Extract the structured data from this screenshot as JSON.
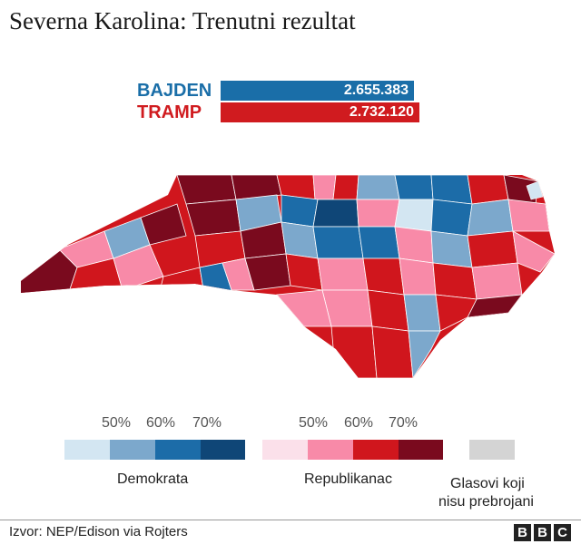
{
  "title": "Severna Karolina: Trenutni rezultat",
  "candidates": [
    {
      "name": "BAJDEN",
      "votes": "2.655.383",
      "color": "#1a6ea8"
    },
    {
      "name": "TRAMP",
      "votes": "2.732.120",
      "color": "#d01b1f"
    }
  ],
  "legend": {
    "democrat": {
      "label": "Demokrata",
      "levels": [
        "50%",
        "60%",
        "70%"
      ],
      "colors": [
        "#d3e6f2",
        "#7ca8cc",
        "#1c6ca8",
        "#0f4677"
      ]
    },
    "republican": {
      "label": "Republikanac",
      "levels": [
        "50%",
        "60%",
        "70%"
      ],
      "colors": [
        "#fbe0ea",
        "#f88aa8",
        "#d0161d",
        "#7a0a1e"
      ]
    },
    "uncounted": {
      "line1": "Glasovi koji",
      "line2": "nisu prebrojani",
      "color": "#d4d4d4"
    }
  },
  "source": "Izvor: NEP/Edison via Rojters",
  "logo": "BBC"
}
